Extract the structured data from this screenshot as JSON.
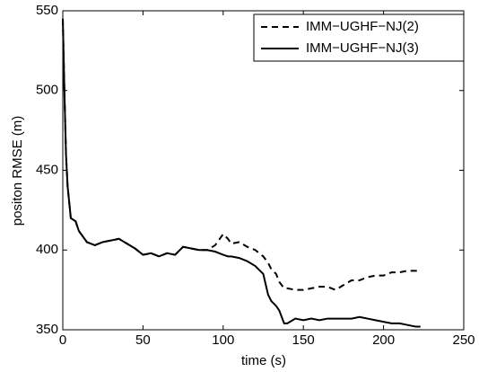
{
  "chart_data": {
    "type": "line",
    "xlabel": "time (s)",
    "ylabel": "positon RMSE (m)",
    "x": [
      0,
      1,
      2,
      3,
      5,
      8,
      10,
      15,
      20,
      25,
      30,
      35,
      40,
      45,
      50,
      55,
      60,
      65,
      70,
      75,
      80,
      85,
      90,
      95,
      100,
      103,
      105,
      110,
      115,
      120,
      125,
      128,
      130,
      133,
      135,
      138,
      140,
      145,
      150,
      155,
      160,
      165,
      170,
      175,
      180,
      185,
      190,
      195,
      200,
      205,
      210,
      215,
      220,
      223
    ],
    "series": [
      {
        "name": "IMM−UGHF−NJ(2)",
        "color": "#000000",
        "style": "dashed",
        "values": [
          545,
          500,
          460,
          440,
          420,
          418,
          412,
          405,
          403,
          405,
          406,
          407,
          404,
          401,
          397,
          398,
          396,
          398,
          397,
          402,
          401,
          400,
          400,
          403,
          410,
          407,
          404,
          405,
          402,
          400,
          396,
          392,
          388,
          385,
          380,
          376,
          376,
          375,
          375,
          376,
          377,
          377,
          375,
          378,
          381,
          381,
          383,
          384,
          384,
          386,
          386,
          387,
          387,
          387
        ]
      },
      {
        "name": "IMM−UGHF−NJ(3)",
        "color": "#000000",
        "style": "solid",
        "values": [
          545,
          500,
          460,
          440,
          420,
          418,
          412,
          405,
          403,
          405,
          406,
          407,
          404,
          401,
          397,
          398,
          396,
          398,
          397,
          402,
          401,
          400,
          400,
          399,
          397,
          396,
          396,
          395,
          393,
          390,
          385,
          372,
          368,
          365,
          362,
          354,
          354,
          357,
          356,
          357,
          356,
          357,
          357,
          357,
          357,
          358,
          357,
          356,
          355,
          354,
          354,
          353,
          352,
          352
        ]
      }
    ],
    "xlim": [
      0,
      250
    ],
    "xticks": [
      0,
      50,
      100,
      150,
      200,
      250
    ],
    "ylim": [
      350,
      550
    ],
    "yticks": [
      350,
      400,
      450,
      500,
      550
    ],
    "legend": "upper right"
  }
}
